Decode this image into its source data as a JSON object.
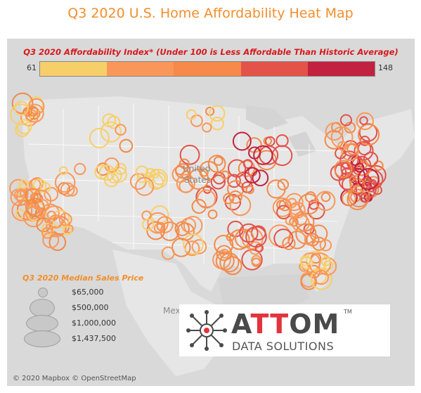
{
  "title": "Q3 2020 U.S. Home Affordability Heat Map",
  "color_legend": {
    "title": "Q3 2020 Affordability Index* (Under 100 is Less Affordable Than Historic Average)",
    "min_label": "61",
    "max_label": "148",
    "min": 61,
    "max": 148,
    "colors": [
      "#f7cf6a",
      "#f9975a",
      "#f58a4a",
      "#e3534a",
      "#c2213f"
    ]
  },
  "map_labels": {
    "country": "United States",
    "country_line1": "United",
    "country_line2": "States",
    "mexico": "Mex"
  },
  "size_legend": {
    "title": "Q3 2020 Median Sales Price",
    "items": [
      {
        "label": "$65,000",
        "value": 65000
      },
      {
        "label": "$500,000",
        "value": 500000
      },
      {
        "label": "$1,000,000",
        "value": 1000000
      },
      {
        "label": "$1,437,500",
        "value": 1437500
      }
    ]
  },
  "logo": {
    "word": "ATTOM",
    "tm": "TM",
    "subtitle": "DATA SOLUTIONS",
    "accent": "#e2343c"
  },
  "credit": "© 2020 Mapbox © OpenStreetMap",
  "colors": {
    "land": "#e6e6e6",
    "water": "#d4d4d4",
    "border": "#ffffff",
    "yellow": "#f7cf6a",
    "orange": "#f9975a",
    "dark_orange": "#f28a48",
    "red": "#e3534a",
    "dark_red": "#c2213f"
  }
}
